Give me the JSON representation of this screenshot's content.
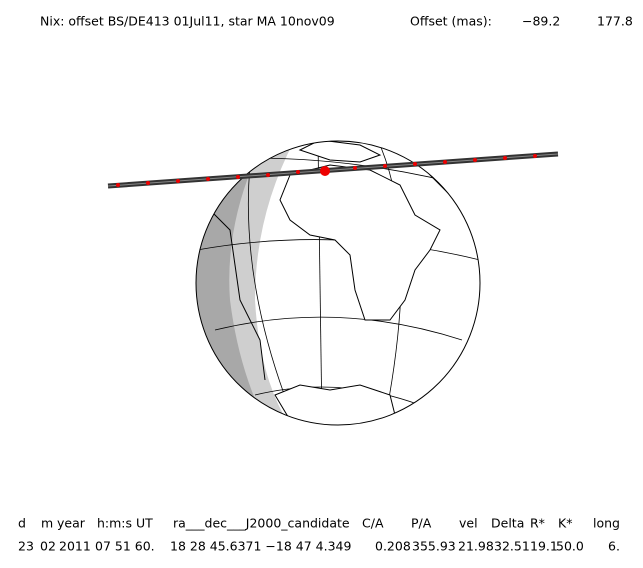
{
  "header": {
    "title": "Nix: offset BS/DE413 01Jul11, star MA 10nov09",
    "offset_label": "Offset (mas):",
    "offset_x": "−89.2",
    "offset_y": "177.8"
  },
  "table": {
    "columns": [
      "d",
      "m",
      "year",
      "h:m:s UT",
      "ra___dec___J2000_candidate",
      "C/A",
      "P/A",
      "vel",
      "Delta",
      "R*",
      "K*",
      "long"
    ],
    "row": [
      "23",
      "02",
      "2011",
      "07 51 60.",
      "18 28 45.6371 −18 47  4.349",
      "0.208",
      "355.93",
      "21.98",
      "32.51",
      "19.1",
      "50.0",
      "6."
    ]
  }
}
